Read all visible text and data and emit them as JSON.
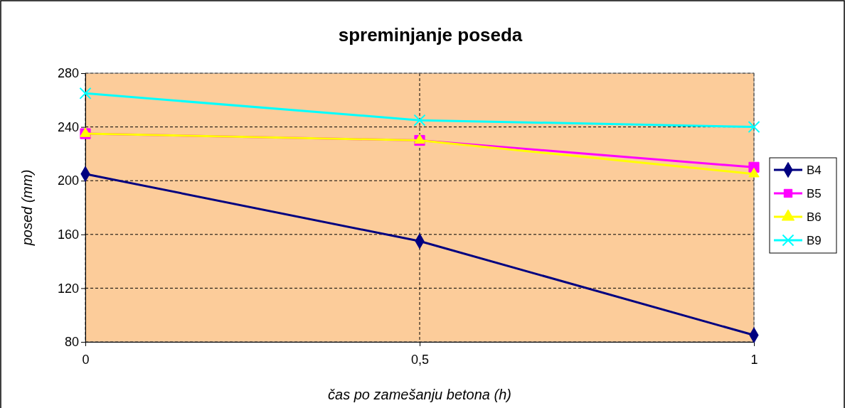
{
  "chart_data": {
    "type": "line",
    "title": "spreminjanje poseda",
    "xlabel": "čas po zamešanju betona (h)",
    "ylabel": "posed (mm)",
    "x": [
      0,
      0.5,
      1
    ],
    "xlim": [
      0,
      1
    ],
    "xticks": [
      0,
      {
        "value": 0.5,
        "label": "0,5"
      },
      1
    ],
    "ylim": [
      80,
      280
    ],
    "yticks": [
      80,
      120,
      160,
      200,
      240,
      280
    ],
    "grid": true,
    "legend": "right",
    "line_style": "solid",
    "series": [
      {
        "name": "B4",
        "color": "#000080",
        "marker": "diamond",
        "values": [
          205,
          155,
          85
        ]
      },
      {
        "name": "B5",
        "color": "#ff00ff",
        "marker": "square",
        "values": [
          235,
          230,
          210
        ]
      },
      {
        "name": "B6",
        "color": "#ffff00",
        "marker": "triangle",
        "values": [
          235,
          230,
          205
        ]
      },
      {
        "name": "B9",
        "color": "#00ffff",
        "marker": "cross",
        "values": [
          265,
          245,
          240
        ]
      }
    ]
  }
}
